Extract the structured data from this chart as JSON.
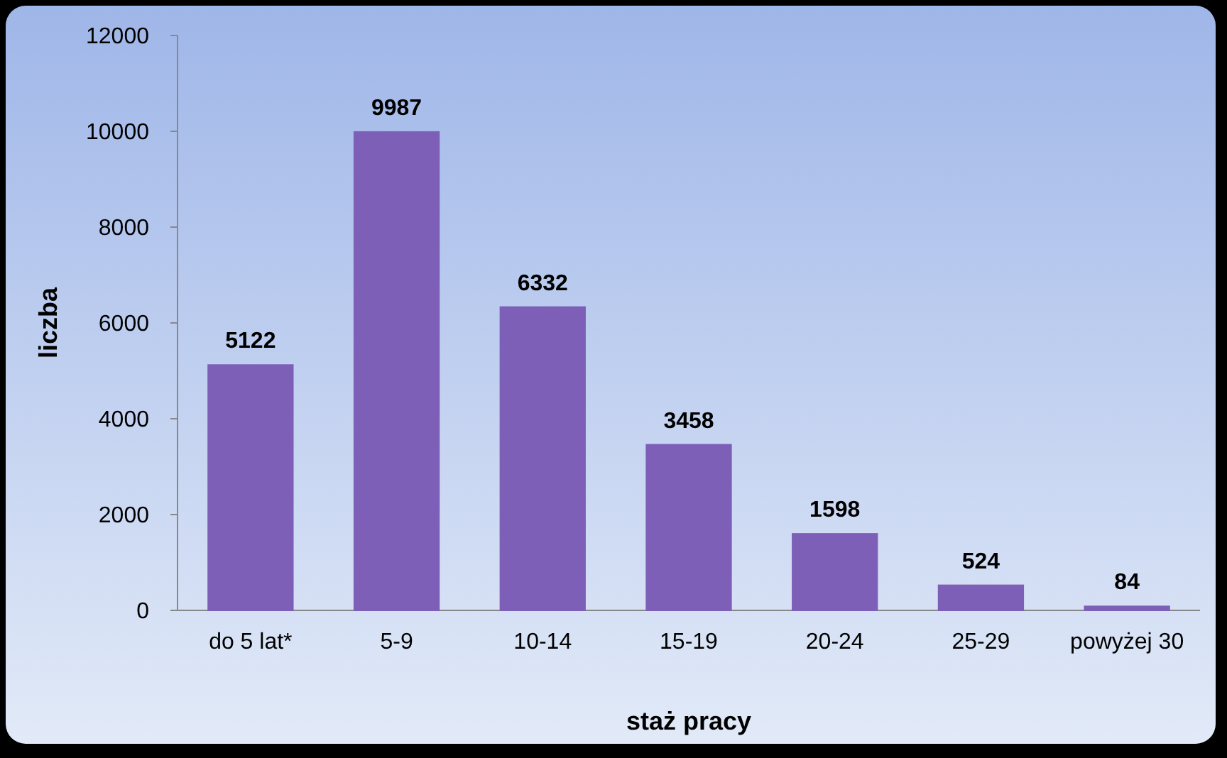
{
  "chart_data": {
    "type": "bar",
    "xlabel": "staż pracy",
    "ylabel": "liczba",
    "categories": [
      "do 5 lat*",
      "5-9",
      "10-14",
      "15-19",
      "20-24",
      "25-29",
      "powyżej 30"
    ],
    "values": [
      5122,
      9987,
      6332,
      3458,
      1598,
      524,
      84
    ],
    "color": "#7e5fb8",
    "ylim": [
      0,
      12000
    ],
    "yticks": [
      0,
      2000,
      4000,
      6000,
      8000,
      10000,
      12000
    ],
    "grid": false,
    "data_labels": true
  }
}
